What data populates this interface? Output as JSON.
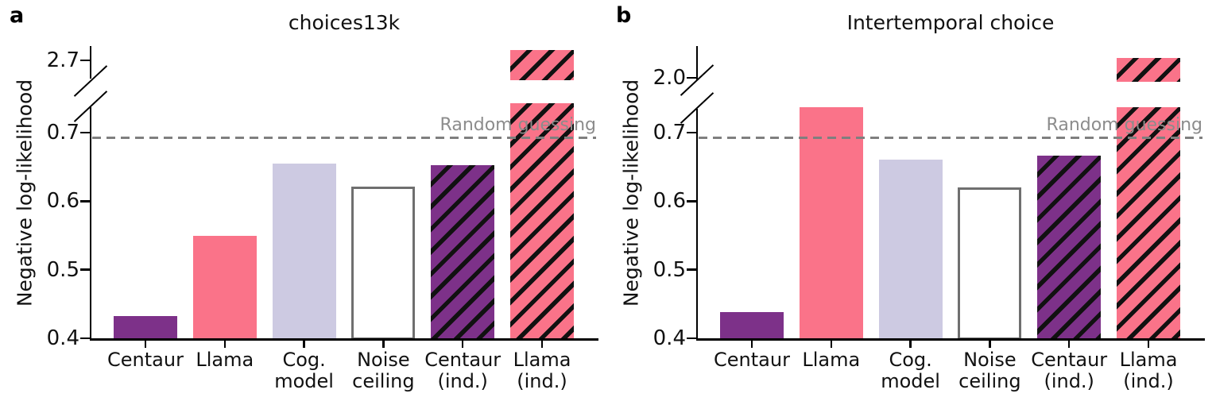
{
  "figure": {
    "background": "#ffffff",
    "ylabel": "Negative log-likelihood"
  },
  "colors": {
    "centaur_purple": "#7d3189",
    "llama_pink": "#fa7389",
    "cog_model_lavender": "#cdcae2",
    "noise_ceiling_fill": "#ffffff",
    "noise_ceiling_border": "#6f6f6f",
    "hatch_black": "#111111",
    "dashed_line_gray": "#7f7f7f",
    "reference_text_gray": "#8c8c8c",
    "axis_black": "#000000"
  },
  "chart_data": [
    {
      "type": "bar",
      "panel_letter": "a",
      "title": "choices13k",
      "ylabel": "Negative log-likelihood",
      "categories": [
        "Centaur",
        "Llama",
        "Cog.\nmodel",
        "Noise\nceiling",
        "Centaur\n(ind.)",
        "Llama\n(ind.)"
      ],
      "values": [
        0.433,
        0.549,
        0.655,
        0.621,
        0.653,
        2.715
      ],
      "bar_styles": [
        {
          "fill": "#7d3189",
          "hatch": false,
          "outline": false
        },
        {
          "fill": "#fa7389",
          "hatch": false,
          "outline": false
        },
        {
          "fill": "#cdcae2",
          "hatch": false,
          "outline": false
        },
        {
          "fill": "#ffffff",
          "hatch": false,
          "outline": true
        },
        {
          "fill": "#7d3189",
          "hatch": true,
          "outline": false
        },
        {
          "fill": "#fa7389",
          "hatch": true,
          "outline": false
        }
      ],
      "yticks_lower": [
        0.4,
        0.5,
        0.6,
        0.7
      ],
      "ytick_upper": 2.7,
      "axis_break": true,
      "grid": false,
      "legend": "none",
      "reference_line": {
        "label": "Random guessing",
        "value": 0.693
      }
    },
    {
      "type": "bar",
      "panel_letter": "b",
      "title": "Intertemporal choice",
      "ylabel": "Negative log-likelihood",
      "categories": [
        "Centaur",
        "Llama",
        "Cog.\nmodel",
        "Noise\nceiling",
        "Centaur\n(ind.)",
        "Llama\n(ind.)"
      ],
      "values": [
        0.438,
        0.737,
        0.661,
        0.62,
        0.667,
        2.029
      ],
      "bar_styles": [
        {
          "fill": "#7d3189",
          "hatch": false,
          "outline": false
        },
        {
          "fill": "#fa7389",
          "hatch": false,
          "outline": false
        },
        {
          "fill": "#cdcae2",
          "hatch": false,
          "outline": false
        },
        {
          "fill": "#ffffff",
          "hatch": false,
          "outline": true
        },
        {
          "fill": "#7d3189",
          "hatch": true,
          "outline": false
        },
        {
          "fill": "#fa7389",
          "hatch": true,
          "outline": false
        }
      ],
      "yticks_lower": [
        0.4,
        0.5,
        0.6,
        0.7
      ],
      "ytick_upper": 2.0,
      "axis_break": true,
      "grid": false,
      "legend": "none",
      "reference_line": {
        "label": "Random guessing",
        "value": 0.693
      }
    }
  ]
}
